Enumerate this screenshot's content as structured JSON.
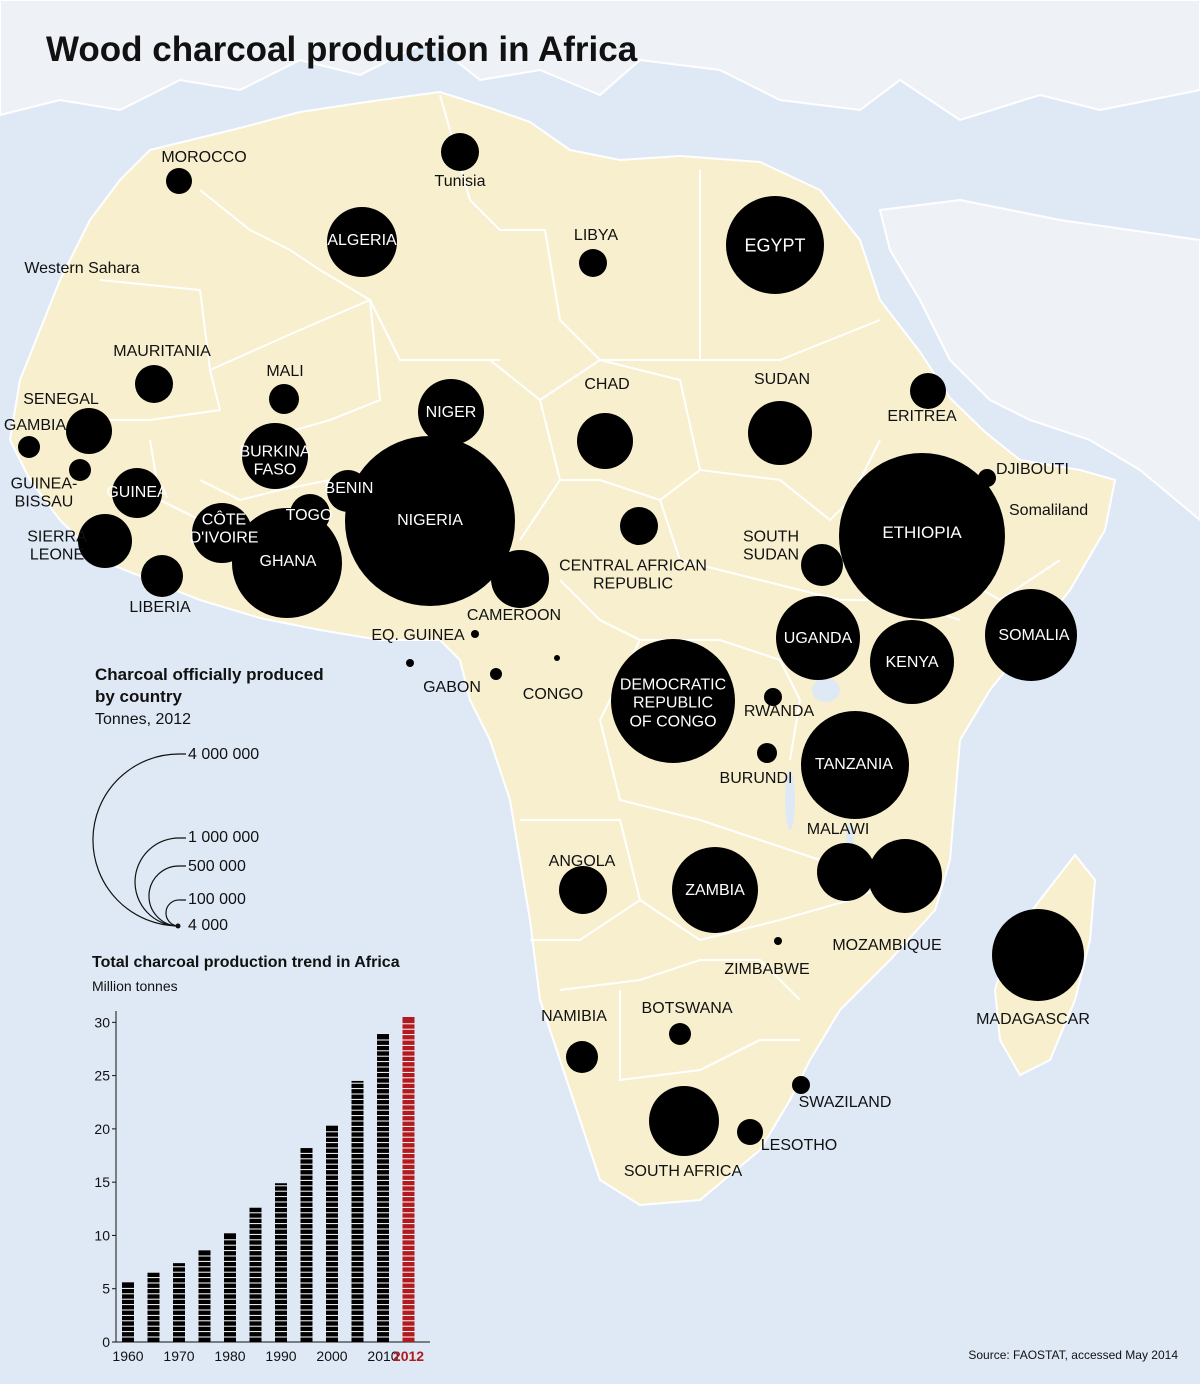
{
  "title": "Wood charcoal production in Africa",
  "colors": {
    "land": "#f7efce",
    "other_land": "#eef1f6",
    "sea": "#dfe9f6",
    "border": "#ffffff",
    "bubble": "#000000",
    "bar": "#000000",
    "bar_highlight": "#b11a1e"
  },
  "countries": [
    {
      "name": "MOROCCO",
      "bubble": true,
      "label_color": "black"
    },
    {
      "name": "Tunisia",
      "bubble": true,
      "label_color": "black"
    },
    {
      "name": "ALGERIA",
      "bubble": true,
      "label_color": "white"
    },
    {
      "name": "LIBYA",
      "bubble": true,
      "label_color": "black"
    },
    {
      "name": "EGYPT",
      "bubble": true,
      "label_color": "white"
    },
    {
      "name": "Western Sahara",
      "bubble": false,
      "label_color": "black"
    },
    {
      "name": "MAURITANIA",
      "bubble": true,
      "label_color": "black"
    },
    {
      "name": "MALI",
      "bubble": true,
      "label_color": "black"
    },
    {
      "name": "SENEGAL",
      "bubble": true,
      "label_color": "black"
    },
    {
      "name": "GAMBIA",
      "bubble": true,
      "label_color": "black"
    },
    {
      "name": "GUINEA-\nBISSAU",
      "bubble": true,
      "label_color": "black"
    },
    {
      "name": "GUINEA",
      "bubble": true,
      "label_color": "white"
    },
    {
      "name": "SIERRA\nLEONE",
      "bubble": true,
      "label_color": "black"
    },
    {
      "name": "LIBERIA",
      "bubble": true,
      "label_color": "black"
    },
    {
      "name": "CÔTE\nD'IVOIRE",
      "bubble": true,
      "label_color": "white"
    },
    {
      "name": "BURKINA\nFASO",
      "bubble": true,
      "label_color": "white"
    },
    {
      "name": "GHANA",
      "bubble": true,
      "label_color": "white"
    },
    {
      "name": "TOGO",
      "bubble": true,
      "label_color": "white"
    },
    {
      "name": "BENIN",
      "bubble": true,
      "label_color": "white"
    },
    {
      "name": "NIGER",
      "bubble": true,
      "label_color": "white"
    },
    {
      "name": "NIGERIA",
      "bubble": true,
      "label_color": "white"
    },
    {
      "name": "CHAD",
      "bubble": true,
      "label_color": "black"
    },
    {
      "name": "SUDAN",
      "bubble": true,
      "label_color": "black"
    },
    {
      "name": "ERITREA",
      "bubble": true,
      "label_color": "black"
    },
    {
      "name": "DJIBOUTI",
      "bubble": true,
      "label_color": "black"
    },
    {
      "name": "Somaliland",
      "bubble": false,
      "label_color": "black"
    },
    {
      "name": "ETHIOPIA",
      "bubble": true,
      "label_color": "white"
    },
    {
      "name": "SOUTH\nSUDAN",
      "bubble": true,
      "label_color": "black"
    },
    {
      "name": "CENTRAL AFRICAN\nREPUBLIC",
      "bubble": true,
      "label_color": "black"
    },
    {
      "name": "CAMEROON",
      "bubble": true,
      "label_color": "black"
    },
    {
      "name": "EQ. GUINEA",
      "bubble": true,
      "label_color": "black"
    },
    {
      "name": "GABON",
      "bubble": true,
      "label_color": "black"
    },
    {
      "name": "CONGO",
      "bubble": true,
      "label_color": "black"
    },
    {
      "name": "DEMOCRATIC\nREPUBLIC\nOF CONGO",
      "bubble": true,
      "label_color": "white"
    },
    {
      "name": "UGANDA",
      "bubble": true,
      "label_color": "white"
    },
    {
      "name": "KENYA",
      "bubble": true,
      "label_color": "white"
    },
    {
      "name": "SOMALIA",
      "bubble": true,
      "label_color": "white"
    },
    {
      "name": "RWANDA",
      "bubble": true,
      "label_color": "black"
    },
    {
      "name": "BURUNDI",
      "bubble": true,
      "label_color": "black"
    },
    {
      "name": "TANZANIA",
      "bubble": true,
      "label_color": "white"
    },
    {
      "name": "MALAWI",
      "bubble": true,
      "label_color": "black"
    },
    {
      "name": "MOZAMBIQUE",
      "bubble": true,
      "label_color": "black"
    },
    {
      "name": "ANGOLA",
      "bubble": true,
      "label_color": "black"
    },
    {
      "name": "ZAMBIA",
      "bubble": true,
      "label_color": "white"
    },
    {
      "name": "ZIMBABWE",
      "bubble": true,
      "label_color": "black"
    },
    {
      "name": "MADAGASCAR",
      "bubble": true,
      "label_color": "black"
    },
    {
      "name": "NAMIBIA",
      "bubble": true,
      "label_color": "black"
    },
    {
      "name": "BOTSWANA",
      "bubble": true,
      "label_color": "black"
    },
    {
      "name": "SWAZILAND",
      "bubble": true,
      "label_color": "black"
    },
    {
      "name": "LESOTHO",
      "bubble": true,
      "label_color": "black"
    },
    {
      "name": "SOUTH AFRICA",
      "bubble": true,
      "label_color": "black"
    }
  ],
  "legend": {
    "title": "Charcoal officially produced\nby country",
    "unit": "Tonnes, 2012",
    "values": [
      "4 000 000",
      "1 000 000",
      "500 000",
      "100 000",
      "4 000"
    ]
  },
  "trend": {
    "title": "Total charcoal production trend in Africa",
    "unit": "Million tonnes"
  },
  "chart_data": {
    "type": "bar",
    "title": "Total charcoal production trend in Africa",
    "ylabel": "Million tonnes",
    "categories": [
      "1960",
      "1965",
      "1970",
      "1975",
      "1980",
      "1985",
      "1990",
      "1995",
      "2000",
      "2005",
      "2010",
      "2012"
    ],
    "x_tick_labels": [
      "1960",
      "1970",
      "1980",
      "1990",
      "2000",
      "2010",
      "2012"
    ],
    "y_ticks": [
      "0",
      "5",
      "10",
      "15",
      "20",
      "25",
      "30"
    ],
    "values": [
      5.6,
      6.5,
      7.4,
      8.6,
      10.2,
      12.6,
      14.9,
      18.2,
      20.3,
      24.5,
      28.9,
      30.5
    ],
    "ylim": [
      0,
      30.5
    ],
    "highlight": "2012"
  },
  "source": "Source: FAOSTAT, accessed May 2014"
}
